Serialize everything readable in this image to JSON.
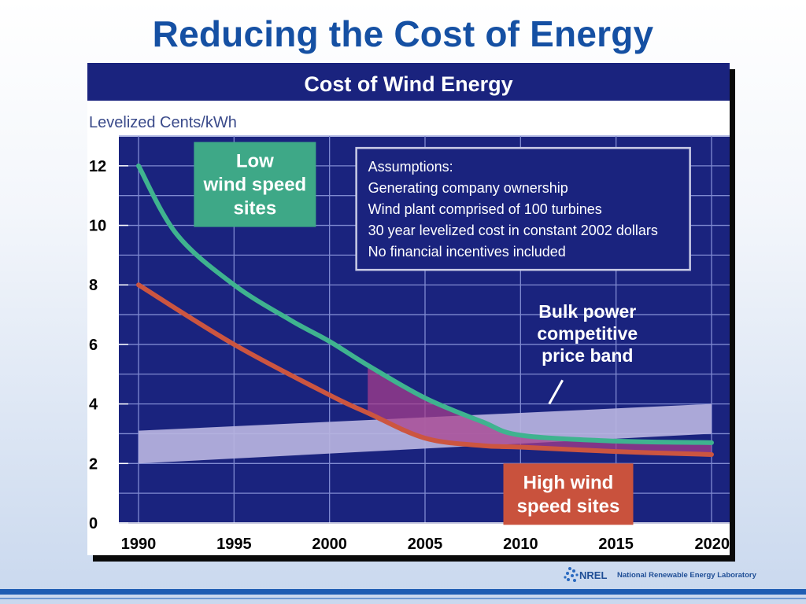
{
  "slide": {
    "title": "Reducing the Cost of Energy"
  },
  "footer": {
    "logo_wordmark": "NREL",
    "organization": "National Renewable Energy Laboratory"
  },
  "colors": {
    "title": "#1550a3",
    "plot_background": "#1a237e",
    "header_background": "#1a237e",
    "grid": "#7f8ad1",
    "low_wind": "#3fb38f",
    "high_wind": "#cc5540",
    "price_band": "#b7b4df",
    "gap_fill": "#a93f8c",
    "footer_bar": "#1e5cb3"
  },
  "chart_data": {
    "type": "line",
    "title": "Cost of Wind Energy",
    "ylabel": "Levelized Cents/kWh",
    "xlabel": "",
    "xlim": [
      1990,
      2020
    ],
    "ylim": [
      0,
      13
    ],
    "x_ticks": [
      1990,
      1995,
      2000,
      2005,
      2010,
      2015,
      2020
    ],
    "y_ticks": [
      0,
      2,
      4,
      6,
      8,
      10,
      12
    ],
    "grid": true,
    "series": [
      {
        "id": "low",
        "name": "Low wind speed sites",
        "label_lines": [
          "Low",
          "wind speed",
          "sites"
        ],
        "x": [
          1990,
          1992,
          1995,
          1998,
          2000,
          2002,
          2005,
          2008,
          2010,
          2015,
          2020
        ],
        "y": [
          12,
          9.7,
          8.0,
          6.8,
          6.1,
          5.3,
          4.2,
          3.4,
          2.95,
          2.75,
          2.7
        ]
      },
      {
        "id": "high",
        "name": "High wind speed sites",
        "label_lines": [
          "High wind",
          "speed sites"
        ],
        "x": [
          1990,
          1995,
          2000,
          2002,
          2005,
          2008,
          2010,
          2015,
          2020
        ],
        "y": [
          8.0,
          6.0,
          4.3,
          3.7,
          2.85,
          2.6,
          2.55,
          2.4,
          2.3
        ]
      }
    ],
    "price_band": {
      "name": "Bulk power competitive price band",
      "label_lines": [
        "Bulk power",
        "competitive",
        "price band"
      ],
      "x": [
        1990,
        2020
      ],
      "lower": [
        2.0,
        3.0
      ],
      "upper": [
        3.1,
        4.0
      ]
    },
    "highlight_region": {
      "start_x": 2002,
      "description": "area between the two curves"
    },
    "assumptions": {
      "heading": "Assumptions:",
      "lines": [
        "Generating company ownership",
        "Wind plant comprised of 100 turbines",
        "30 year levelized cost in constant 2002 dollars",
        "No financial incentives included"
      ]
    }
  }
}
